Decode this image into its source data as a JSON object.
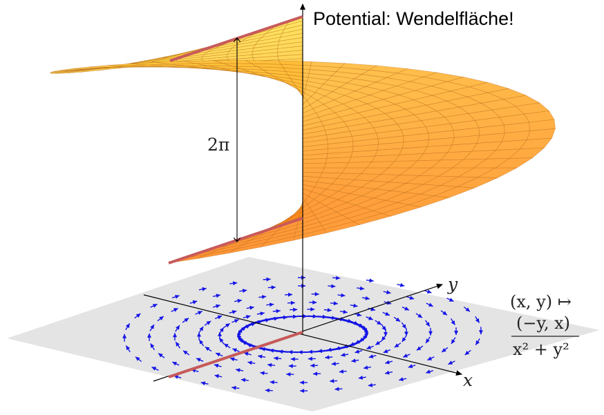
{
  "title": "Potential: Wendelfläche!",
  "height_label": "2π",
  "axes": {
    "x_label": "x",
    "y_label": "y"
  },
  "formula": {
    "line1": "(x, y) ↦",
    "numerator": "(−y, x)",
    "denominator": "x² + y²"
  },
  "colors": {
    "surface_light": "#ffe14a",
    "surface_dark": "#ff7a14",
    "mesh": "#b86a1a",
    "arrows": "#1414e6",
    "branch_cut": "#c85a5a",
    "plane": "#e2e2e2"
  }
}
